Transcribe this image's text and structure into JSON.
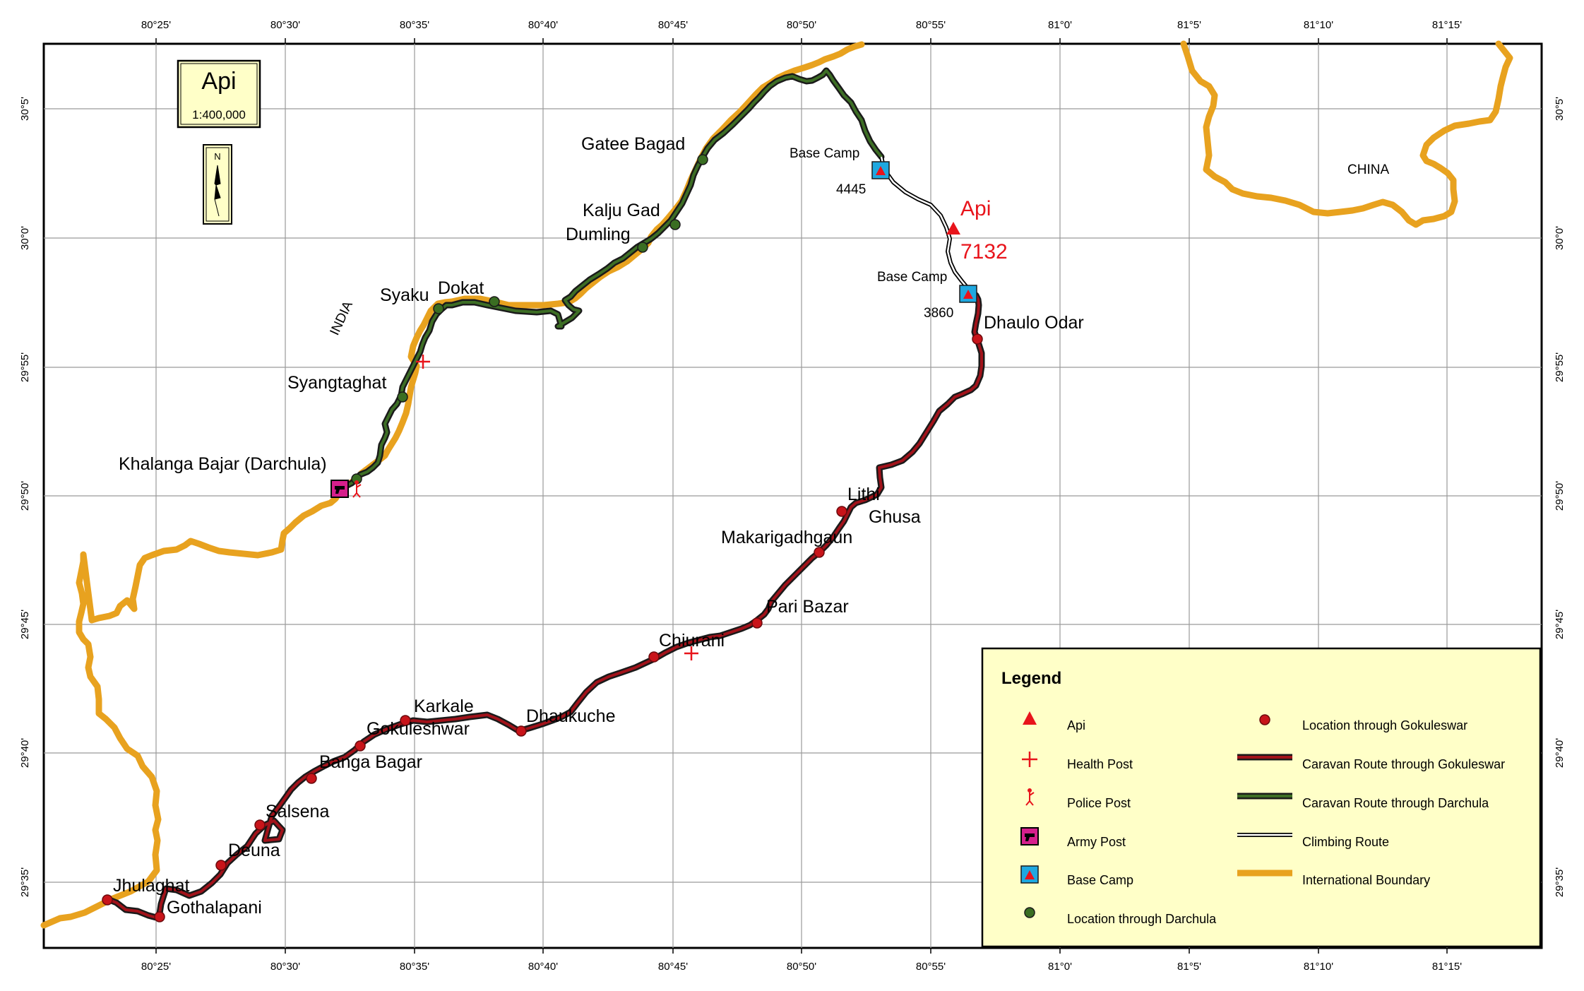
{
  "title_box": {
    "title": "Api",
    "scale": "1:400,000"
  },
  "north_arrow_label": "N",
  "graticule": {
    "longitudes": [
      "80°25'",
      "80°30'",
      "80°35'",
      "80°40'",
      "80°45'",
      "80°50'",
      "80°55'",
      "81°0'",
      "81°5'",
      "81°10'",
      "81°15'"
    ],
    "latitudes": [
      "30°5'",
      "30°0'",
      "29°55'",
      "29°50'",
      "29°45'",
      "29°40'",
      "29°35'"
    ]
  },
  "regions": {
    "india": "INDIA",
    "china": "CHINA"
  },
  "peak": {
    "name": "Api",
    "elevation": "7132"
  },
  "base_camps": [
    {
      "label": "Base Camp",
      "elevation": "4445"
    },
    {
      "label": "Base Camp",
      "elevation": "3860"
    }
  ],
  "places": {
    "gatee_bagad": "Gatee Bagad",
    "kalju_gad": "Kalju Gad",
    "dumling": "Dumling",
    "syaku": "Syaku",
    "dokat": "Dokat",
    "syangtaghat": "Syangtaghat",
    "khalanga": "Khalanga Bajar (Darchula)",
    "dhaulo_odar": "Dhaulo Odar",
    "lithi": "Lithi",
    "ghusa": "Ghusa",
    "makarigadh": "Makarigadhgaun",
    "pari_bazar": "Pari Bazar",
    "chiurani": "Chiurani",
    "dhaukuche": "Dhaukuche",
    "karkale": "Karkale",
    "gokuleshwar": "Gokuleshwar",
    "banga_bagar": "Banga Bagar",
    "salsena": "Salsena",
    "deuna": "Deuna",
    "jhulaghat": "Jhulaghat",
    "gothalapani": "Gothalapani"
  },
  "legend": {
    "title": "Legend",
    "items": [
      {
        "label": "Api",
        "symbol": "triangle-icon"
      },
      {
        "label": "Health Post",
        "symbol": "cross-icon"
      },
      {
        "label": "Police Post",
        "symbol": "police-icon"
      },
      {
        "label": "Army Post",
        "symbol": "army-icon"
      },
      {
        "label": "Base Camp",
        "symbol": "camp-icon"
      },
      {
        "label": "Location through Darchula",
        "symbol": "green-dot-icon"
      },
      {
        "label": "Location through Gokuleswar",
        "symbol": "red-dot-icon"
      },
      {
        "label": "Caravan Route through Gokuleswar",
        "symbol": "red-route-line"
      },
      {
        "label": "Caravan Route through Darchula",
        "symbol": "green-route-line"
      },
      {
        "label": "Climbing Route",
        "symbol": "climbing-route-line"
      },
      {
        "label": "International Boundary",
        "symbol": "boundary-line"
      }
    ]
  },
  "colors": {
    "boundary": "#e8a21f",
    "gokuleswar_route": "#a1121a",
    "darchula_route": "#27451c",
    "location_red": "#c8141a",
    "location_green": "#3a6e22",
    "peak_red": "#e8141b",
    "camp_blue": "#1fa8e0",
    "army_magenta": "#d61f8c",
    "legend_bg": "#ffffc8"
  }
}
